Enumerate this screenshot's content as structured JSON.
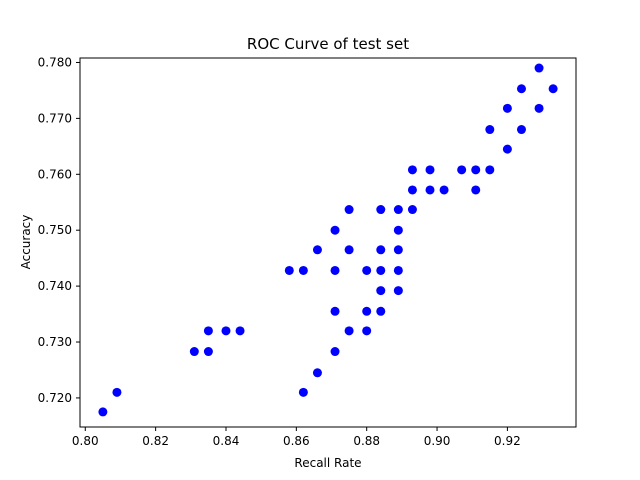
{
  "chart_data": {
    "type": "scatter",
    "title": "ROC Curve of test set",
    "xlabel": "Recall Rate",
    "ylabel": "Accuracy",
    "xlim": [
      0.7985,
      0.9395
    ],
    "ylim": [
      0.7148,
      0.7808
    ],
    "xticks": [
      "0.80",
      "0.82",
      "0.84",
      "0.86",
      "0.88",
      "0.90",
      "0.92"
    ],
    "yticks": [
      "0.720",
      "0.730",
      "0.740",
      "0.750",
      "0.760",
      "0.770",
      "0.780"
    ],
    "grid": false,
    "point_color": "#0000ff",
    "series": [
      {
        "points": [
          [
            0.805,
            0.7175
          ],
          [
            0.809,
            0.721
          ],
          [
            0.831,
            0.7283
          ],
          [
            0.835,
            0.7283
          ],
          [
            0.835,
            0.732
          ],
          [
            0.84,
            0.732
          ],
          [
            0.844,
            0.732
          ],
          [
            0.858,
            0.7428
          ],
          [
            0.862,
            0.7428
          ],
          [
            0.862,
            0.721
          ],
          [
            0.866,
            0.7245
          ],
          [
            0.866,
            0.7465
          ],
          [
            0.871,
            0.75
          ],
          [
            0.871,
            0.7428
          ],
          [
            0.871,
            0.7355
          ],
          [
            0.871,
            0.7283
          ],
          [
            0.875,
            0.7537
          ],
          [
            0.875,
            0.7465
          ],
          [
            0.875,
            0.732
          ],
          [
            0.88,
            0.7428
          ],
          [
            0.88,
            0.7355
          ],
          [
            0.88,
            0.732
          ],
          [
            0.884,
            0.7537
          ],
          [
            0.884,
            0.7465
          ],
          [
            0.884,
            0.7428
          ],
          [
            0.884,
            0.7392
          ],
          [
            0.884,
            0.7355
          ],
          [
            0.889,
            0.7537
          ],
          [
            0.889,
            0.75
          ],
          [
            0.889,
            0.7465
          ],
          [
            0.889,
            0.7428
          ],
          [
            0.889,
            0.7392
          ],
          [
            0.893,
            0.7608
          ],
          [
            0.893,
            0.7572
          ],
          [
            0.893,
            0.7537
          ],
          [
            0.898,
            0.7608
          ],
          [
            0.898,
            0.7572
          ],
          [
            0.902,
            0.7572
          ],
          [
            0.907,
            0.7608
          ],
          [
            0.911,
            0.7608
          ],
          [
            0.911,
            0.7572
          ],
          [
            0.915,
            0.768
          ],
          [
            0.915,
            0.7608
          ],
          [
            0.92,
            0.7718
          ],
          [
            0.92,
            0.7645
          ],
          [
            0.924,
            0.7753
          ],
          [
            0.924,
            0.768
          ],
          [
            0.929,
            0.779
          ],
          [
            0.929,
            0.7718
          ],
          [
            0.933,
            0.7753
          ]
        ]
      }
    ]
  }
}
